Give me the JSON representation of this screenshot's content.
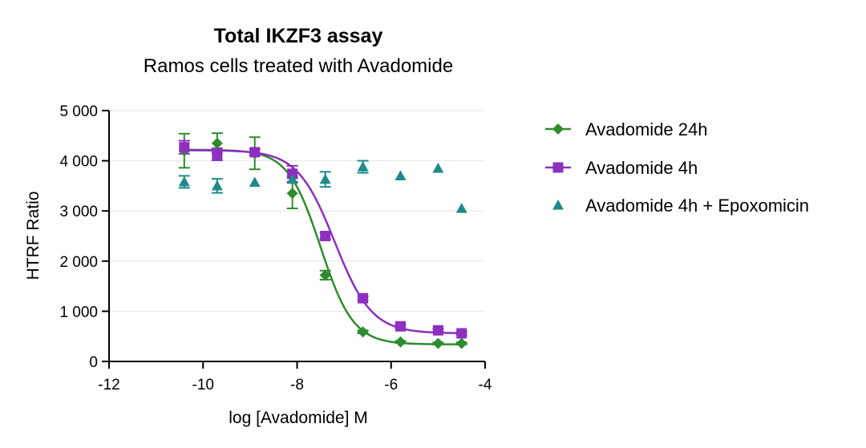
{
  "chart_data": {
    "type": "scatter",
    "title": "Total IKZF3 assay",
    "subtitle": "Ramos cells treated with Avadomide",
    "xlabel": "log [Avadomide] M",
    "ylabel": "HTRF Ratio",
    "xlim": [
      -12,
      -4
    ],
    "ylim": [
      0,
      5000
    ],
    "xticks": [
      -12,
      -10,
      -8,
      -6,
      -4
    ],
    "xtick_labels": [
      "-12",
      "-10",
      "-8",
      "-6",
      "-4"
    ],
    "yticks": [
      0,
      1000,
      2000,
      3000,
      4000,
      5000
    ],
    "ytick_labels": [
      "0",
      "1 000",
      "2 000",
      "3 000",
      "4 000",
      "5 000"
    ],
    "grid": "horizontal",
    "legend_position": "right",
    "series": [
      {
        "name": "Avadomide 24h",
        "color": "#2e8b2e",
        "marker": "diamond",
        "x": [
          -10.4,
          -9.7,
          -8.9,
          -8.1,
          -7.4,
          -6.6,
          -5.8,
          -5.0,
          -4.5
        ],
        "y": [
          4200,
          4350,
          4150,
          3350,
          1720,
          590,
          390,
          360,
          360
        ],
        "err": [
          340,
          200,
          320,
          300,
          90,
          30,
          20,
          20,
          20
        ],
        "fit": {
          "top": 4220,
          "bottom": 340,
          "logEC50": -7.5,
          "hill": 1.25
        }
      },
      {
        "name": "Avadomide 4h",
        "color": "#8e2fc0",
        "marker": "square",
        "x": [
          -10.4,
          -9.7,
          -8.9,
          -8.1,
          -7.4,
          -6.6,
          -5.8,
          -5.0,
          -4.5
        ],
        "y": [
          4270,
          4130,
          4170,
          3740,
          2500,
          1260,
          700,
          620,
          560
        ],
        "err": [
          130,
          120,
          60,
          160,
          60,
          40,
          30,
          30,
          30
        ],
        "fit": {
          "top": 4210,
          "bottom": 560,
          "logEC50": -7.2,
          "hill": 1.1
        }
      },
      {
        "name": "Avadomide 4h + Epoxomicin",
        "color": "#1e8a8a",
        "marker": "triangle",
        "x": [
          -10.4,
          -9.7,
          -8.9,
          -8.1,
          -7.4,
          -6.6,
          -5.8,
          -5.0,
          -4.5
        ],
        "y": [
          3580,
          3500,
          3570,
          3630,
          3630,
          3880,
          3700,
          3850,
          3050
        ],
        "err": [
          120,
          140,
          0,
          60,
          150,
          120,
          0,
          0,
          0
        ]
      }
    ]
  }
}
